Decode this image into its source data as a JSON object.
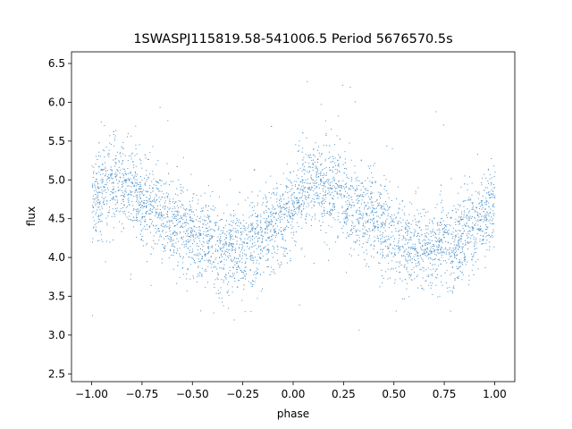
{
  "chart_data": {
    "type": "scatter",
    "title": "1SWASPJ115819.58-541006.5 Period 5676570.5s",
    "xlabel": "phase",
    "ylabel": "flux",
    "xlim": [
      -1.1,
      1.1
    ],
    "ylim": [
      2.4,
      6.65
    ],
    "xticks": [
      -1.0,
      -0.75,
      -0.5,
      -0.25,
      0.0,
      0.25,
      0.5,
      0.75,
      1.0
    ],
    "xtick_labels": [
      "−1.00",
      "−0.75",
      "−0.50",
      "−0.25",
      "0.00",
      "0.25",
      "0.50",
      "0.75",
      "1.00"
    ],
    "yticks": [
      2.5,
      3.0,
      3.5,
      4.0,
      4.5,
      5.0,
      5.5,
      6.0,
      6.5
    ],
    "ytick_labels": [
      "2.5",
      "3.0",
      "3.5",
      "4.0",
      "4.5",
      "5.0",
      "5.5",
      "6.0",
      "6.5"
    ],
    "grid": false,
    "color": "#4a90c8",
    "light_curve_profile": {
      "phase": [
        -1.0,
        -0.9,
        -0.8,
        -0.7,
        -0.6,
        -0.5,
        -0.45,
        -0.35,
        -0.25,
        -0.15,
        -0.05,
        0.0,
        0.1,
        0.2,
        0.3,
        0.4,
        0.5,
        0.55,
        0.65,
        0.75,
        0.85,
        0.95,
        1.0
      ],
      "flux_median": [
        4.75,
        4.95,
        4.9,
        4.65,
        4.5,
        4.3,
        4.2,
        4.1,
        4.15,
        4.25,
        4.5,
        4.75,
        4.95,
        4.9,
        4.65,
        4.5,
        4.3,
        4.2,
        4.1,
        4.15,
        4.25,
        4.5,
        4.75
      ],
      "scatter": 0.28
    }
  }
}
